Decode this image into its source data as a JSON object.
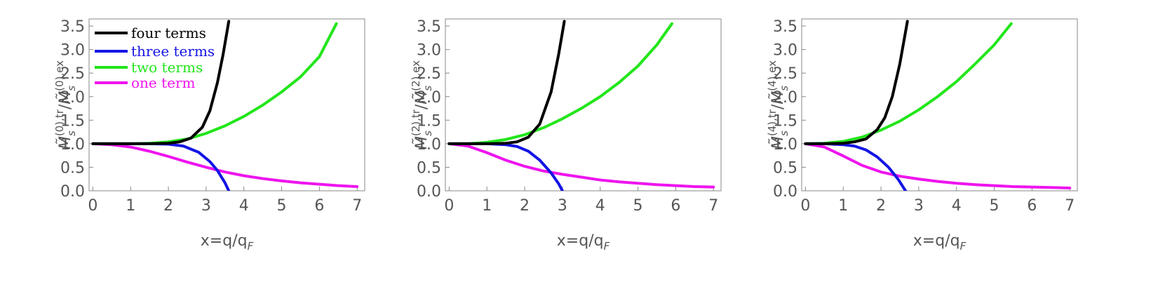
{
  "chart_data": [
    {
      "type": "line",
      "legend": true,
      "legend_position": "top-left",
      "xlabel": [
        "x=q/q",
        "F"
      ],
      "ylabel": [
        "M̃",
        "s",
        "(0),tr",
        "/",
        "M̃",
        "s",
        "(0),ex"
      ],
      "xlim": [
        -0.1,
        7.2
      ],
      "ylim": [
        0,
        3.65
      ],
      "xticks": [
        0,
        1,
        2,
        3,
        4,
        5,
        6,
        7
      ],
      "yticks": [
        {
          "value": 0,
          "label": "0.0"
        },
        0.5,
        {
          "value": 1,
          "label": "1.0"
        },
        1.5,
        {
          "value": 2,
          "label": "2.0"
        },
        2.5,
        {
          "value": 3,
          "label": "3.0"
        },
        3.5
      ],
      "series": [
        {
          "name": "four terms",
          "color": "#000000",
          "x": [
            0,
            0.5,
            1,
            1.5,
            2,
            2.3,
            2.6,
            2.9,
            3.1,
            3.3,
            3.45,
            3.6
          ],
          "values": [
            1,
            1,
            1,
            1,
            1.01,
            1.04,
            1.12,
            1.35,
            1.7,
            2.3,
            2.9,
            3.6
          ]
        },
        {
          "name": "three terms",
          "color": "#1414e6",
          "x": [
            0,
            0.5,
            1,
            1.5,
            2,
            2.4,
            2.8,
            3.1,
            3.3,
            3.5,
            3.6
          ],
          "values": [
            1,
            1,
            1,
            1,
            0.99,
            0.95,
            0.82,
            0.62,
            0.43,
            0.17,
            0
          ]
        },
        {
          "name": "two terms",
          "color": "#22e61a",
          "x": [
            0,
            0.5,
            1,
            1.5,
            2,
            2.5,
            3,
            3.5,
            4,
            4.5,
            5,
            5.5,
            6,
            6.45
          ],
          "values": [
            1,
            1,
            1,
            1.01,
            1.04,
            1.1,
            1.22,
            1.38,
            1.58,
            1.82,
            2.1,
            2.42,
            2.85,
            3.55
          ]
        },
        {
          "name": "one term",
          "color": "#ee14ee",
          "x": [
            0,
            0.5,
            1,
            1.5,
            2,
            2.5,
            3,
            3.5,
            4,
            4.5,
            5,
            5.5,
            6,
            6.5,
            7
          ],
          "values": [
            1,
            0.98,
            0.93,
            0.84,
            0.73,
            0.61,
            0.5,
            0.4,
            0.32,
            0.26,
            0.21,
            0.17,
            0.14,
            0.11,
            0.09
          ]
        }
      ]
    },
    {
      "type": "line",
      "legend": false,
      "xlabel": [
        "x=q/q",
        "F"
      ],
      "ylabel": [
        "M̃",
        "s",
        "(2),tr",
        "/",
        "M̃",
        "s",
        "(2),ex"
      ],
      "xlim": [
        -0.1,
        7.2
      ],
      "ylim": [
        0,
        3.65
      ],
      "xticks": [
        0,
        1,
        2,
        3,
        4,
        5,
        6,
        7
      ],
      "yticks": [
        {
          "value": 0,
          "label": "0.0"
        },
        0.5,
        {
          "value": 1,
          "label": "1.0"
        },
        1.5,
        {
          "value": 2,
          "label": "2.0"
        },
        2.5,
        {
          "value": 3,
          "label": "3.0"
        },
        3.5
      ],
      "series": [
        {
          "color": "#000000",
          "x": [
            0,
            0.5,
            1,
            1.5,
            1.8,
            2.1,
            2.4,
            2.7,
            2.9,
            3.05
          ],
          "values": [
            1,
            1,
            1,
            1.01,
            1.04,
            1.14,
            1.42,
            2.1,
            2.9,
            3.6
          ]
        },
        {
          "color": "#1414e6",
          "x": [
            0,
            0.5,
            1,
            1.5,
            1.8,
            2.1,
            2.4,
            2.7,
            2.9,
            3.0
          ],
          "values": [
            1,
            1,
            1,
            0.98,
            0.94,
            0.84,
            0.65,
            0.38,
            0.15,
            0
          ]
        },
        {
          "color": "#22e61a",
          "x": [
            0,
            0.5,
            1,
            1.5,
            2,
            2.5,
            3,
            3.5,
            4,
            4.5,
            5,
            5.5,
            5.9
          ],
          "values": [
            1,
            1,
            1.03,
            1.09,
            1.19,
            1.34,
            1.53,
            1.75,
            2.0,
            2.3,
            2.65,
            3.1,
            3.55
          ]
        },
        {
          "color": "#ee14ee",
          "x": [
            0,
            0.5,
            1,
            1.5,
            2,
            2.5,
            3,
            3.5,
            4,
            4.5,
            5,
            5.5,
            6,
            6.5,
            7
          ],
          "values": [
            1,
            0.95,
            0.81,
            0.65,
            0.52,
            0.42,
            0.35,
            0.29,
            0.23,
            0.19,
            0.16,
            0.13,
            0.11,
            0.09,
            0.08
          ]
        }
      ]
    },
    {
      "type": "line",
      "legend": false,
      "xlabel": [
        "x=q/q",
        "F"
      ],
      "ylabel": [
        "M̃",
        "s",
        "(4),tr",
        "/",
        "M̃",
        "s",
        "(4),ex"
      ],
      "xlim": [
        -0.1,
        7.2
      ],
      "ylim": [
        0,
        3.65
      ],
      "xticks": [
        0,
        1,
        2,
        3,
        4,
        5,
        6,
        7
      ],
      "yticks": [
        {
          "value": 0,
          "label": "0.0"
        },
        0.5,
        {
          "value": 1,
          "label": "1.0"
        },
        1.5,
        {
          "value": 2,
          "label": "2.0"
        },
        2.5,
        {
          "value": 3,
          "label": "3.0"
        },
        3.5
      ],
      "series": [
        {
          "color": "#000000",
          "x": [
            0,
            0.5,
            1,
            1.3,
            1.6,
            1.9,
            2.1,
            2.3,
            2.5,
            2.7
          ],
          "values": [
            1,
            1,
            1.01,
            1.04,
            1.1,
            1.3,
            1.55,
            2.0,
            2.7,
            3.6
          ]
        },
        {
          "color": "#1414e6",
          "x": [
            0,
            0.5,
            1,
            1.3,
            1.6,
            1.9,
            2.2,
            2.45,
            2.65
          ],
          "values": [
            1,
            1,
            0.98,
            0.95,
            0.87,
            0.72,
            0.5,
            0.25,
            0
          ]
        },
        {
          "color": "#22e61a",
          "x": [
            0,
            0.5,
            1,
            1.5,
            2,
            2.5,
            3,
            3.5,
            4,
            4.5,
            5,
            5.45
          ],
          "values": [
            1,
            1.01,
            1.05,
            1.14,
            1.29,
            1.48,
            1.72,
            2.0,
            2.32,
            2.7,
            3.1,
            3.55
          ]
        },
        {
          "color": "#ee14ee",
          "x": [
            0,
            0.5,
            1,
            1.5,
            2,
            2.5,
            3,
            3.5,
            4,
            4.5,
            5,
            5.5,
            6,
            6.5,
            7
          ],
          "values": [
            1,
            0.93,
            0.74,
            0.54,
            0.4,
            0.31,
            0.25,
            0.2,
            0.16,
            0.13,
            0.11,
            0.09,
            0.08,
            0.07,
            0.06
          ]
        }
      ]
    }
  ]
}
